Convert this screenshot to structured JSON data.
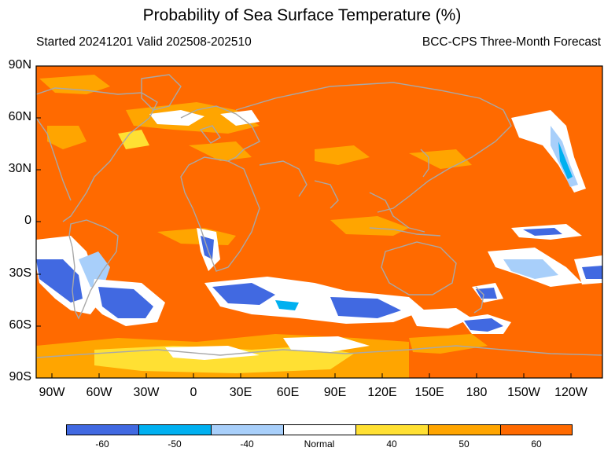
{
  "header": {
    "title": "Probability of Sea Surface Temperature (%)",
    "subtitle_left": "Started 20241201  Valid 202508-202510",
    "subtitle_right": "BCC-CPS Three-Month Forecast"
  },
  "map": {
    "lat_labels": [
      "90N",
      "60N",
      "30N",
      "0",
      "30S",
      "60S",
      "90S"
    ],
    "lon_labels": [
      "90W",
      "60W",
      "30W",
      "0",
      "30E",
      "60E",
      "90E",
      "120E",
      "150E",
      "180",
      "150W",
      "120W"
    ],
    "colors": {
      "ocean_warm_60": "#FF6A00",
      "warm_50": "#FFA500",
      "warm_40": "#FFE033",
      "normal": "#FFFFFF",
      "cool_40": "#A8CFFA",
      "cool_50": "#00B0F0",
      "cool_60": "#4169E1",
      "coastline": "#A8A8A8"
    }
  },
  "legend": {
    "items": [
      {
        "label": "-60",
        "color": "#4169E1"
      },
      {
        "label": "-50",
        "color": "#00B0F0"
      },
      {
        "label": "-40",
        "color": "#A8CFFA"
      },
      {
        "label": "Normal",
        "color": "#FFFFFF"
      },
      {
        "label": "40",
        "color": "#FFE033"
      },
      {
        "label": "50",
        "color": "#FFA500"
      },
      {
        "label": "60",
        "color": "#FF6A00"
      }
    ]
  }
}
